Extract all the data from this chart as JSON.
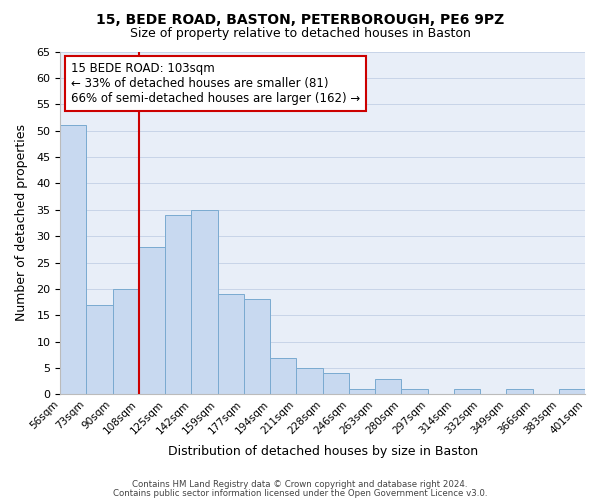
{
  "title1": "15, BEDE ROAD, BASTON, PETERBOROUGH, PE6 9PZ",
  "title2": "Size of property relative to detached houses in Baston",
  "xlabel": "Distribution of detached houses by size in Baston",
  "ylabel": "Number of detached properties",
  "footer1": "Contains HM Land Registry data © Crown copyright and database right 2024.",
  "footer2": "Contains public sector information licensed under the Open Government Licence v3.0.",
  "bin_labels": [
    "56sqm",
    "73sqm",
    "90sqm",
    "108sqm",
    "125sqm",
    "142sqm",
    "159sqm",
    "177sqm",
    "194sqm",
    "211sqm",
    "228sqm",
    "246sqm",
    "263sqm",
    "280sqm",
    "297sqm",
    "314sqm",
    "332sqm",
    "349sqm",
    "366sqm",
    "383sqm",
    "401sqm"
  ],
  "bar_heights": [
    51,
    17,
    20,
    28,
    34,
    35,
    19,
    18,
    7,
    5,
    4,
    1,
    3,
    1,
    0,
    1,
    0,
    1,
    0,
    1
  ],
  "bar_color": "#c8d9f0",
  "bar_edge_color": "#7aaad0",
  "property_line_color": "#cc0000",
  "property_line_bin_index": 3,
  "annotation_title": "15 BEDE ROAD: 103sqm",
  "annotation_line1": "← 33% of detached houses are smaller (81)",
  "annotation_line2": "66% of semi-detached houses are larger (162) →",
  "annotation_box_color": "#cc0000",
  "ylim_max": 65,
  "ytick_step": 5,
  "grid_color": "#c8d4e8",
  "background_color": "#e8eef8"
}
